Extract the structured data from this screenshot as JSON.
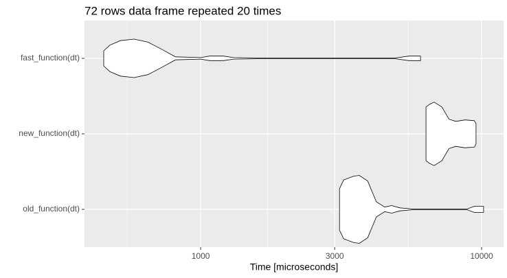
{
  "chart_data": {
    "type": "violin",
    "title": "72 rows data frame repeated 20 times",
    "x_label": "Time [microseconds]",
    "categories": [
      "fast_function(dt)",
      "new_function(dt)",
      "old_function(dt)"
    ],
    "log_x": true,
    "grid": true,
    "panel_color": "#ebebeb",
    "grid_color": "#ffffff",
    "fill": "#ffffff",
    "outline": "#000000",
    "xlim": [
      386,
      11970
    ],
    "xticks": [
      1000,
      3000,
      10000
    ],
    "minor_xticks": [
      548,
      1732,
      5477
    ],
    "violins": [
      {
        "x": [
          452,
          475,
          518,
          580,
          649,
          727,
          813,
          1000,
          1076,
          1204,
          1310,
          1641,
          4920,
          5510,
          6060
        ],
        "width": [
          0.2,
          0.35,
          0.47,
          0.51,
          0.43,
          0.24,
          0.04,
          0.02,
          0.06,
          0.06,
          0.02,
          0.01,
          0.01,
          0.06,
          0.06
        ]
      },
      {
        "x": [
          6340,
          6520,
          6780,
          7220,
          7650,
          8090,
          8730,
          9420,
          9550
        ],
        "width": [
          0.71,
          0.78,
          0.84,
          0.71,
          0.39,
          0.33,
          0.37,
          0.35,
          0.27
        ]
      },
      {
        "x": [
          3120,
          3230,
          3510,
          3670,
          3930,
          4220,
          4520,
          4780,
          5120,
          5660,
          8890,
          9400,
          10160
        ],
        "width": [
          0.55,
          0.78,
          0.88,
          0.9,
          0.75,
          0.2,
          0.06,
          0.1,
          0.04,
          0.01,
          0.01,
          0.08,
          0.08
        ]
      }
    ]
  }
}
